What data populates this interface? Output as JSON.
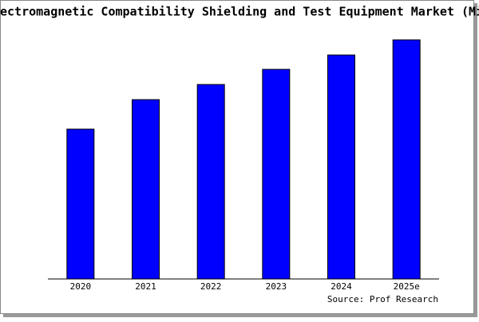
{
  "chart_data": {
    "type": "bar",
    "title": "ectromagnetic Compatibility Shielding and Test Equipment Market (Mi",
    "source": "Source: Prof Research",
    "categories": [
      "2020",
      "2021",
      "2022",
      "2023",
      "2024",
      "2025e"
    ],
    "values": [
      188,
      225,
      244,
      263,
      281,
      300
    ],
    "color": "#0000ff",
    "ylim": [
      0,
      300
    ]
  }
}
